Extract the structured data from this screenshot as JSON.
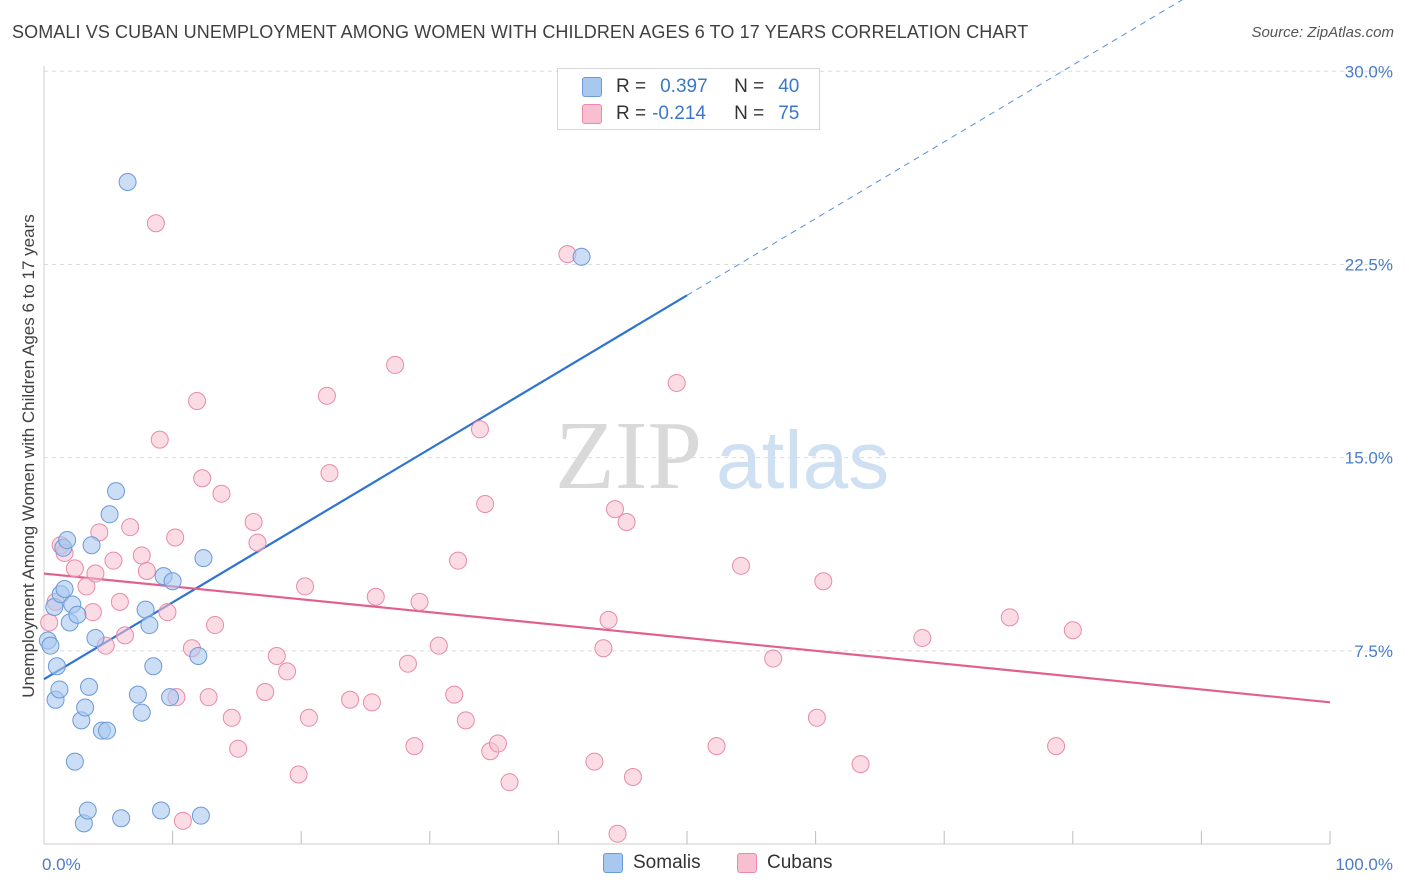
{
  "title": "SOMALI VS CUBAN UNEMPLOYMENT AMONG WOMEN WITH CHILDREN AGES 6 TO 17 YEARS CORRELATION CHART",
  "source": "Source: ZipAtlas.com",
  "watermark": {
    "zip": "ZIP",
    "atlas": "atlas"
  },
  "colors": {
    "somali_fill": "#a9c8f0",
    "somali_stroke": "#6a9ad8",
    "somali_line": "#2f74d0",
    "cuban_fill": "#f7bfd0",
    "cuban_stroke": "#e88aa8",
    "cuban_line": "#e0608e",
    "tick": "#4a7cc8",
    "grid": "#dcdcdc"
  },
  "legend": {
    "rows": [
      {
        "r_label": "R =",
        "r_value": "0.397",
        "n_label": "N =",
        "n_value": "40"
      },
      {
        "r_label": "R =",
        "r_value": "-0.214",
        "n_label": "N =",
        "n_value": "75"
      }
    ]
  },
  "bottom_legend": {
    "somali": "Somalis",
    "cuban": "Cubans"
  },
  "chart_data": {
    "type": "scatter",
    "title": "SOMALI VS CUBAN UNEMPLOYMENT AMONG WOMEN WITH CHILDREN AGES 6 TO 17 YEARS CORRELATION CHART",
    "xlabel": "",
    "ylabel": "Unemployment Among Women with Children Ages 6 to 17 years",
    "xlim": [
      0,
      100
    ],
    "ylim": [
      0,
      29.7
    ],
    "x_tick_labels": {
      "min": "0.0%",
      "max": "100.0%"
    },
    "x_ticks_minor": [
      10,
      20,
      30,
      40,
      50,
      60,
      70,
      80,
      90,
      100
    ],
    "y_ticks": [
      {
        "value": 7.5,
        "label": "7.5%"
      },
      {
        "value": 15.0,
        "label": "15.0%"
      },
      {
        "value": 22.5,
        "label": "22.5%"
      },
      {
        "value": 30.0,
        "label": "30.0%"
      }
    ],
    "series": [
      {
        "name": "Somalis",
        "r": 0.397,
        "n": 40,
        "trend": {
          "x0": 0,
          "y0": 6.4,
          "x1": 50,
          "y1": 21.3,
          "dash_to_x": 100
        },
        "points": [
          [
            0.3,
            7.9
          ],
          [
            0.5,
            7.7
          ],
          [
            0.8,
            9.2
          ],
          [
            0.9,
            5.6
          ],
          [
            1.0,
            6.9
          ],
          [
            1.2,
            6.0
          ],
          [
            1.3,
            9.7
          ],
          [
            1.5,
            11.5
          ],
          [
            1.6,
            9.9
          ],
          [
            1.8,
            11.8
          ],
          [
            2.0,
            8.6
          ],
          [
            2.2,
            9.3
          ],
          [
            2.4,
            3.2
          ],
          [
            2.6,
            8.9
          ],
          [
            2.9,
            4.8
          ],
          [
            3.1,
            0.8
          ],
          [
            3.2,
            5.3
          ],
          [
            3.4,
            1.3
          ],
          [
            3.5,
            6.1
          ],
          [
            3.7,
            11.6
          ],
          [
            4.0,
            8.0
          ],
          [
            4.5,
            4.4
          ],
          [
            4.9,
            4.4
          ],
          [
            5.1,
            12.8
          ],
          [
            5.6,
            13.7
          ],
          [
            6.0,
            1.0
          ],
          [
            6.5,
            25.7
          ],
          [
            7.3,
            5.8
          ],
          [
            7.6,
            5.1
          ],
          [
            7.9,
            9.1
          ],
          [
            8.2,
            8.5
          ],
          [
            8.5,
            6.9
          ],
          [
            9.1,
            1.3
          ],
          [
            9.3,
            10.4
          ],
          [
            10.0,
            10.2
          ],
          [
            12.0,
            7.3
          ],
          [
            12.2,
            1.1
          ],
          [
            12.4,
            11.1
          ],
          [
            41.8,
            22.8
          ],
          [
            9.8,
            5.7
          ]
        ]
      },
      {
        "name": "Cubans",
        "r": -0.214,
        "n": 75,
        "trend": {
          "x0": 0,
          "y0": 10.5,
          "x1": 100,
          "y1": 5.5
        },
        "points": [
          [
            0.4,
            8.6
          ],
          [
            0.9,
            9.4
          ],
          [
            1.3,
            11.6
          ],
          [
            1.6,
            11.3
          ],
          [
            2.4,
            10.7
          ],
          [
            3.3,
            10.0
          ],
          [
            3.8,
            9.0
          ],
          [
            4.0,
            10.5
          ],
          [
            4.3,
            12.1
          ],
          [
            4.8,
            7.7
          ],
          [
            5.4,
            11.0
          ],
          [
            5.9,
            9.4
          ],
          [
            6.3,
            8.1
          ],
          [
            6.7,
            12.3
          ],
          [
            7.6,
            11.2
          ],
          [
            8.0,
            10.6
          ],
          [
            8.7,
            24.1
          ],
          [
            9.0,
            15.7
          ],
          [
            9.6,
            9.0
          ],
          [
            10.2,
            11.9
          ],
          [
            10.3,
            5.7
          ],
          [
            10.8,
            0.9
          ],
          [
            11.5,
            7.6
          ],
          [
            11.9,
            17.2
          ],
          [
            12.3,
            14.2
          ],
          [
            12.8,
            5.7
          ],
          [
            13.3,
            8.5
          ],
          [
            13.8,
            13.6
          ],
          [
            14.6,
            4.9
          ],
          [
            15.1,
            3.7
          ],
          [
            16.3,
            12.5
          ],
          [
            16.6,
            11.7
          ],
          [
            17.2,
            5.9
          ],
          [
            18.1,
            7.3
          ],
          [
            18.9,
            6.7
          ],
          [
            19.8,
            2.7
          ],
          [
            20.3,
            10.0
          ],
          [
            20.6,
            4.9
          ],
          [
            22.0,
            17.4
          ],
          [
            22.2,
            14.4
          ],
          [
            23.8,
            5.6
          ],
          [
            25.5,
            5.5
          ],
          [
            25.8,
            9.6
          ],
          [
            27.3,
            18.6
          ],
          [
            28.3,
            7.0
          ],
          [
            28.8,
            3.8
          ],
          [
            29.2,
            9.4
          ],
          [
            30.7,
            7.7
          ],
          [
            31.9,
            5.8
          ],
          [
            32.2,
            11.0
          ],
          [
            32.8,
            4.8
          ],
          [
            33.9,
            16.1
          ],
          [
            34.3,
            13.2
          ],
          [
            34.7,
            3.6
          ],
          [
            35.3,
            3.9
          ],
          [
            36.2,
            2.4
          ],
          [
            40.7,
            22.9
          ],
          [
            42.8,
            3.2
          ],
          [
            43.5,
            7.6
          ],
          [
            43.9,
            8.7
          ],
          [
            44.4,
            13.0
          ],
          [
            44.6,
            0.4
          ],
          [
            45.3,
            12.5
          ],
          [
            45.8,
            2.6
          ],
          [
            49.2,
            17.9
          ],
          [
            52.3,
            3.8
          ],
          [
            54.2,
            10.8
          ],
          [
            56.7,
            7.2
          ],
          [
            60.1,
            4.9
          ],
          [
            60.6,
            10.2
          ],
          [
            63.5,
            3.1
          ],
          [
            68.3,
            8.0
          ],
          [
            75.1,
            8.8
          ],
          [
            78.7,
            3.8
          ],
          [
            80.0,
            8.3
          ]
        ]
      }
    ]
  }
}
